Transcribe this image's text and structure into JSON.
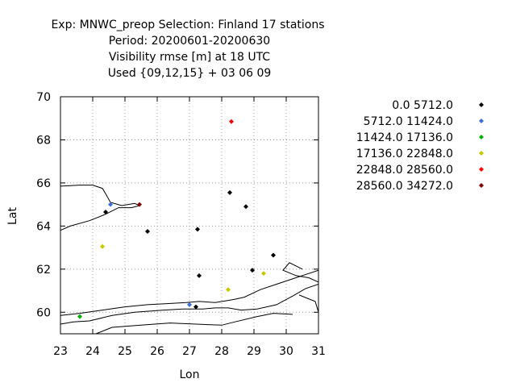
{
  "chart_data": {
    "type": "scatter",
    "title_lines": [
      "Exp: MNWC_preop   Selection: Finland     17 stations",
      "Period: 20200601-20200630",
      "Visibility rmse [m] at  18 UTC",
      "Used {09,12,15} + 03 06 09"
    ],
    "xlabel": "Lon",
    "ylabel": "Lat",
    "xlim": [
      23,
      31
    ],
    "ylim": [
      59,
      70
    ],
    "x_ticks": [
      23,
      24,
      25,
      26,
      27,
      28,
      29,
      30,
      31
    ],
    "y_ticks": [
      60,
      62,
      64,
      66,
      68,
      70
    ],
    "grid": true,
    "legend_position": "right",
    "series": [
      {
        "name": "0.0 5712.0",
        "color": "#000000",
        "points": [
          [
            24.4,
            64.65
          ],
          [
            25.7,
            63.75
          ],
          [
            27.25,
            63.85
          ],
          [
            27.3,
            61.7
          ],
          [
            27.2,
            60.25
          ],
          [
            28.25,
            65.55
          ],
          [
            28.75,
            64.9
          ],
          [
            28.95,
            61.95
          ],
          [
            29.6,
            62.65
          ]
        ]
      },
      {
        "name": "5712.0 11424.0",
        "color": "#3a6fd8",
        "points": [
          [
            24.55,
            65.0
          ],
          [
            27.0,
            60.35
          ]
        ]
      },
      {
        "name": "11424.0 17136.0",
        "color": "#00b000",
        "points": [
          [
            23.6,
            59.8
          ]
        ]
      },
      {
        "name": "17136.0 22848.0",
        "color": "#c8c800",
        "points": [
          [
            24.3,
            63.05
          ],
          [
            28.2,
            61.05
          ],
          [
            29.3,
            61.8
          ]
        ]
      },
      {
        "name": "22848.0 28560.0",
        "color": "#ff0000",
        "points": [
          [
            28.3,
            68.85
          ]
        ]
      },
      {
        "name": "28560.0 34272.0",
        "color": "#800000",
        "points": [
          [
            25.45,
            65.0
          ]
        ]
      }
    ]
  }
}
